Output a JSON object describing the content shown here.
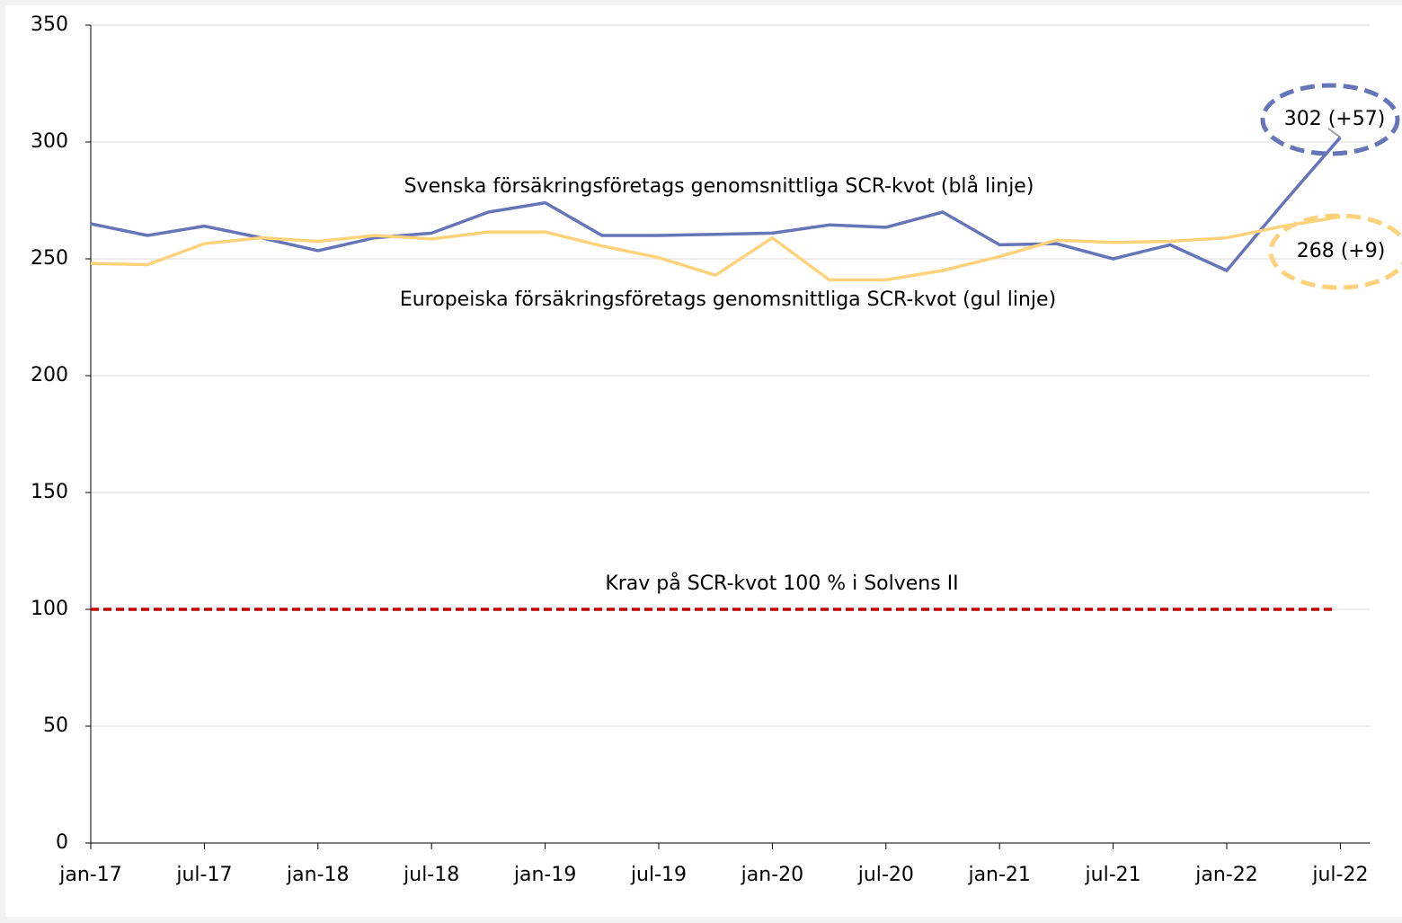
{
  "chart_data": {
    "type": "line",
    "categories": [
      "jan-17",
      null,
      "jul-17",
      null,
      "jan-18",
      null,
      "jul-18",
      null,
      "jan-19",
      null,
      "jul-19",
      null,
      "jan-20",
      null,
      "jul-20",
      null,
      "jan-21",
      null,
      "jul-21",
      null,
      "jan-22",
      null,
      "jul-22"
    ],
    "series": [
      {
        "name": "Svenska försäkringsföretags genomsnittliga SCR-kvot (blå linje)",
        "color": "#6675b8",
        "values": [
          265,
          260,
          264,
          259,
          253.5,
          259,
          261,
          270,
          274,
          260,
          260,
          260.5,
          261,
          264.5,
          263.5,
          270,
          256,
          256.5,
          250,
          256,
          245,
          274,
          302
        ]
      },
      {
        "name": "Europeiska försäkringsföretags genomsnittliga SCR-kvot (gul linje)",
        "color": "#fdd27a",
        "values": [
          248,
          247.5,
          256.5,
          259,
          257.5,
          260,
          258.5,
          261.5,
          261.5,
          255.5,
          250.5,
          243,
          259,
          241,
          241,
          245,
          251,
          258,
          257,
          257.5,
          259,
          264,
          268
        ]
      }
    ],
    "reference_line": {
      "value": 100,
      "label": "Krav på SCR-kvot 100 % i Solvens II",
      "color": "#c00000"
    },
    "annotations": [
      "302 (+57)",
      "268 (+9)"
    ],
    "ylim": [
      0,
      350
    ],
    "yticks": [
      0,
      50,
      100,
      150,
      200,
      250,
      300,
      350
    ],
    "grid": true
  }
}
